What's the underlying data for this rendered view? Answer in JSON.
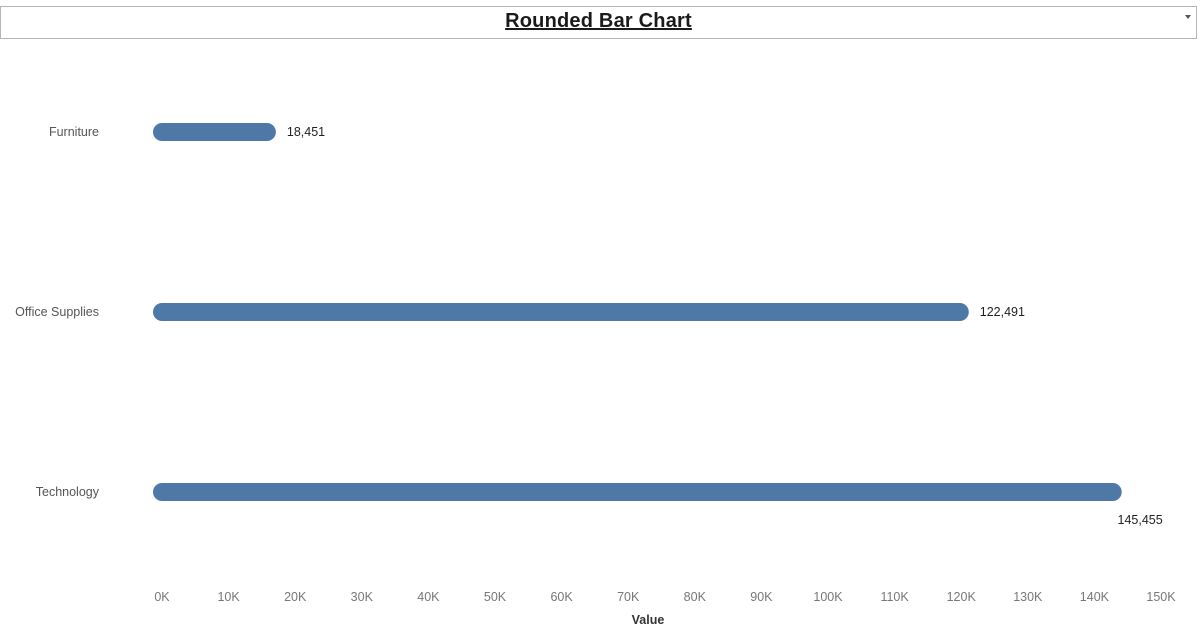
{
  "chart_data": {
    "type": "bar",
    "orientation": "horizontal",
    "title": "Rounded Bar Chart",
    "categories": [
      "Furniture",
      "Office Supplies",
      "Technology"
    ],
    "values": [
      18451,
      122491,
      145455
    ],
    "value_labels": [
      "18,451",
      "122,491",
      "145,455"
    ],
    "xlabel": "Value",
    "ylabel": "",
    "xlim": [
      0,
      150000
    ],
    "x_ticks": [
      0,
      10000,
      20000,
      30000,
      40000,
      50000,
      60000,
      70000,
      80000,
      90000,
      100000,
      110000,
      120000,
      130000,
      140000,
      150000
    ],
    "x_tick_labels": [
      "0K",
      "10K",
      "20K",
      "30K",
      "40K",
      "50K",
      "60K",
      "70K",
      "80K",
      "90K",
      "100K",
      "110K",
      "120K",
      "130K",
      "140K",
      "150K"
    ],
    "grid": false,
    "legend": "none",
    "bar_color": "#4e79a7"
  }
}
